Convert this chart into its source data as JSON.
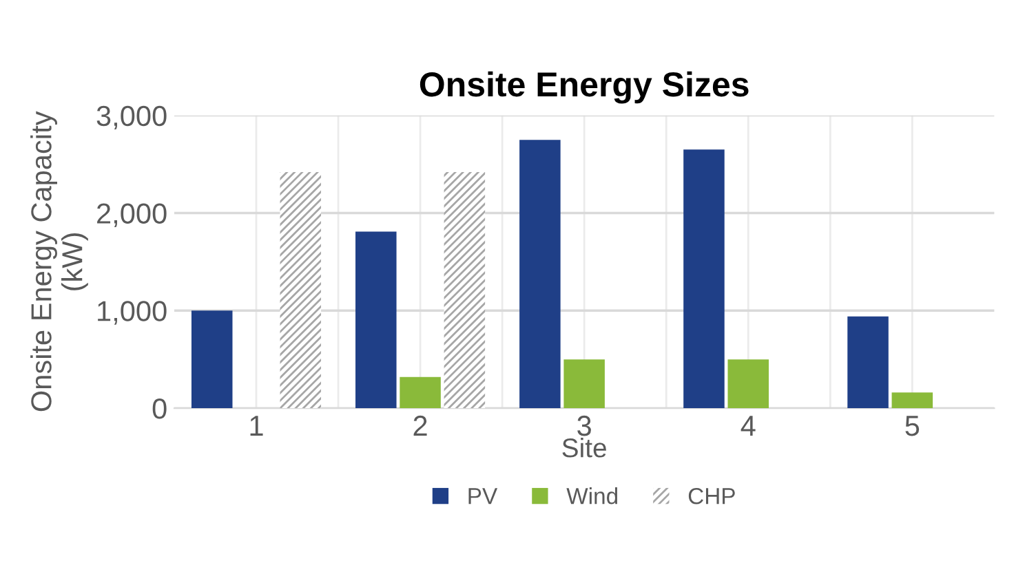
{
  "chart_data": {
    "type": "bar",
    "title": "Onsite Energy Sizes",
    "xlabel": "Site",
    "ylabel": "Onsite Energy Capacity\n(kW)",
    "categories": [
      "1",
      "2",
      "3",
      "4",
      "5"
    ],
    "series": [
      {
        "name": "PV",
        "color": "#1f3f87",
        "values": [
          1000,
          1810,
          2750,
          2650,
          940
        ]
      },
      {
        "name": "Wind",
        "color": "#8aba3a",
        "values": [
          null,
          320,
          500,
          500,
          160
        ]
      },
      {
        "name": "CHP",
        "color": "#a6a6a6",
        "values": [
          2420,
          2420,
          null,
          null,
          null
        ]
      }
    ],
    "ylim": [
      0,
      3000
    ],
    "yticks": [
      {
        "value": 0,
        "label": "0"
      },
      {
        "value": 1000,
        "label": "1,000"
      },
      {
        "value": 2000,
        "label": "2,000"
      },
      {
        "value": 3000,
        "label": "3,000"
      }
    ],
    "grid": true,
    "legend": "bottom"
  }
}
